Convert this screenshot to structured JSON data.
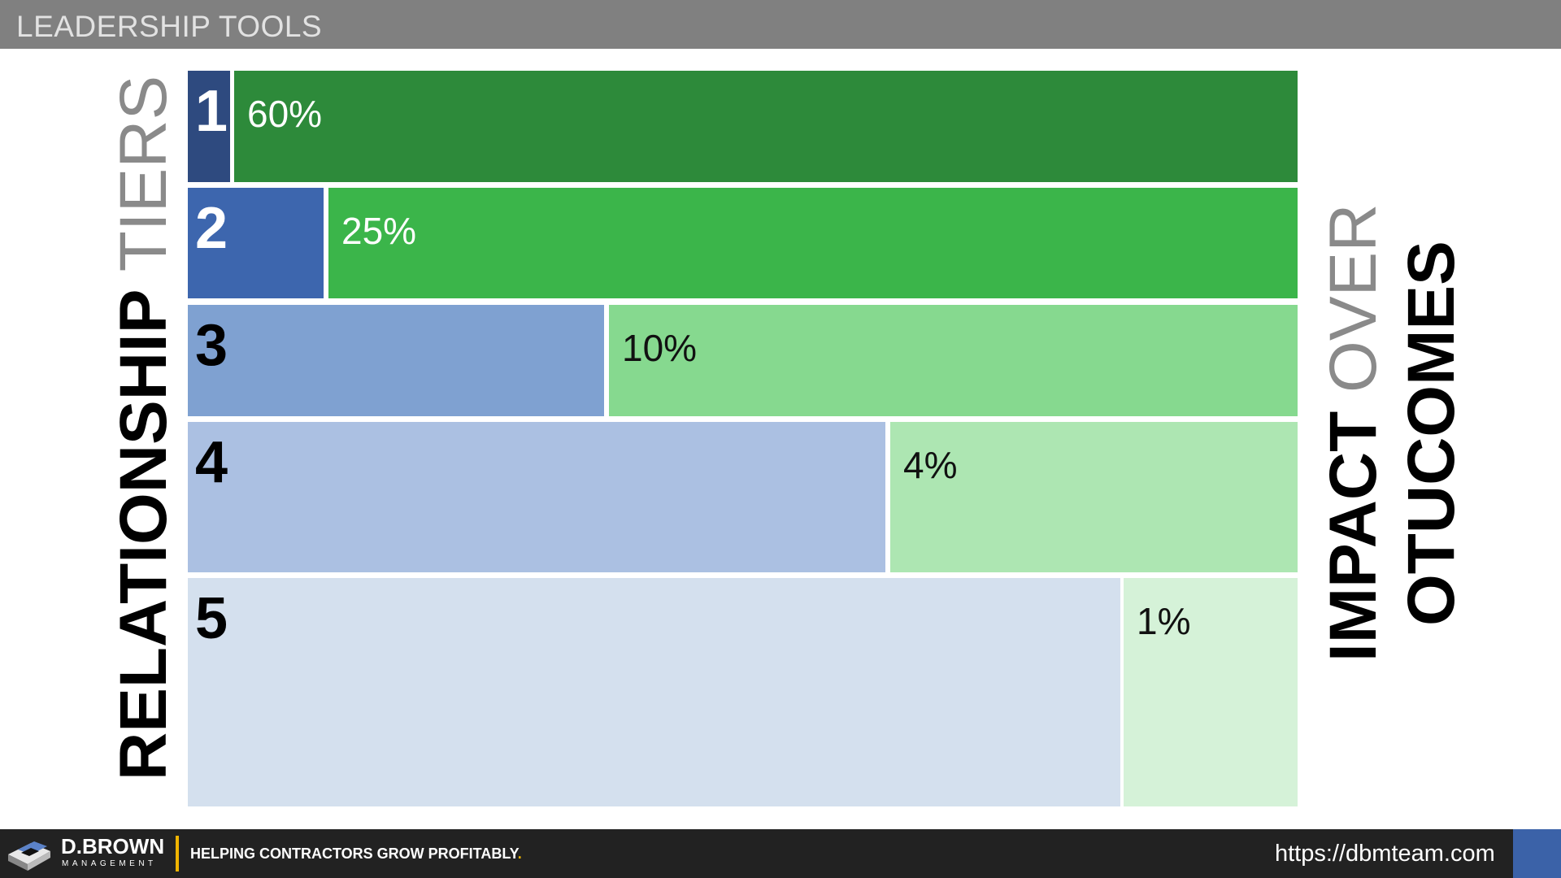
{
  "header": {
    "title": "LEADERSHIP TOOLS"
  },
  "left_label": {
    "bold": "RELATIONSHIP",
    "light": "TIERS"
  },
  "right_label": {
    "line1_bold": "IMPACT",
    "line1_light": "OVER",
    "line2_bold": "OTUCOMES"
  },
  "tiers": [
    {
      "number": "1",
      "percent": "60%",
      "tier_color": "#2e4a7f",
      "impact_color": "#2d8a3a"
    },
    {
      "number": "2",
      "percent": "25%",
      "tier_color": "#3d66ae",
      "impact_color": "#3bb54a"
    },
    {
      "number": "3",
      "percent": "10%",
      "tier_color": "#7fa1d1",
      "impact_color": "#86d98f"
    },
    {
      "number": "4",
      "percent": "4%",
      "tier_color": "#abc0e2",
      "impact_color": "#ade6b2"
    },
    {
      "number": "5",
      "percent": "1%",
      "tier_color": "#d4e0ee",
      "impact_color": "#d5f2d8"
    }
  ],
  "footer": {
    "brand": "D.BROWN",
    "brand_sub": "MANAGEMENT",
    "tagline": "HELPING CONTRACTORS GROW PROFITABLY",
    "tagline_dot": ".",
    "url": "https://dbmteam.com"
  }
}
